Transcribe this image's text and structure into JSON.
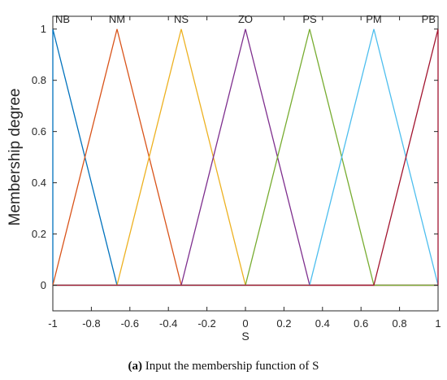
{
  "chart_data": {
    "type": "line",
    "xlabel": "S",
    "ylabel": "Membership degree",
    "xlim": [
      -1,
      1
    ],
    "ylim": [
      -0.1,
      1.05
    ],
    "x_ticks": [
      -1,
      -0.8,
      -0.6,
      -0.4,
      -0.2,
      0,
      0.2,
      0.4,
      0.6,
      0.8,
      1
    ],
    "x_tick_labels": [
      "-1",
      "-0.8",
      "-0.6",
      "-0.4",
      "-0.2",
      "0",
      "0.2",
      "0.4",
      "0.6",
      "0.8",
      "1"
    ],
    "y_ticks": [
      0,
      0.2,
      0.4,
      0.6,
      0.8,
      1
    ],
    "y_tick_labels": [
      "0",
      "0.2",
      "0.4",
      "0.6",
      "0.8",
      "1"
    ],
    "grid": false,
    "box": true,
    "series": [
      {
        "name": "NB",
        "color": "#0072BD",
        "x": [
          -1,
          -1,
          -0.6667,
          1
        ],
        "y": [
          0,
          1,
          0,
          0
        ]
      },
      {
        "name": "NM",
        "color": "#D95319",
        "x": [
          -1,
          -0.6667,
          -0.3333,
          1
        ],
        "y": [
          0,
          1,
          0,
          0
        ]
      },
      {
        "name": "NS",
        "color": "#EDB120",
        "x": [
          -1,
          -0.6667,
          -0.3333,
          0,
          1
        ],
        "y": [
          0,
          0,
          1,
          0,
          0
        ]
      },
      {
        "name": "ZO",
        "color": "#7E2F8E",
        "x": [
          -1,
          -0.3333,
          0,
          0.3333,
          1
        ],
        "y": [
          0,
          0,
          1,
          0,
          0
        ]
      },
      {
        "name": "PS",
        "color": "#77AC30",
        "x": [
          -1,
          0,
          0.3333,
          0.6667,
          1
        ],
        "y": [
          0,
          0,
          1,
          0,
          0
        ]
      },
      {
        "name": "PM",
        "color": "#4DBEEE",
        "x": [
          -1,
          0.3333,
          0.6667,
          1
        ],
        "y": [
          0,
          0,
          1,
          0
        ]
      },
      {
        "name": "PB",
        "color": "#A2142F",
        "x": [
          -1,
          0.6667,
          1,
          1
        ],
        "y": [
          0,
          0,
          1,
          0
        ]
      }
    ]
  },
  "caption": {
    "label": "(a)",
    "text": " Input the membership function of S"
  }
}
